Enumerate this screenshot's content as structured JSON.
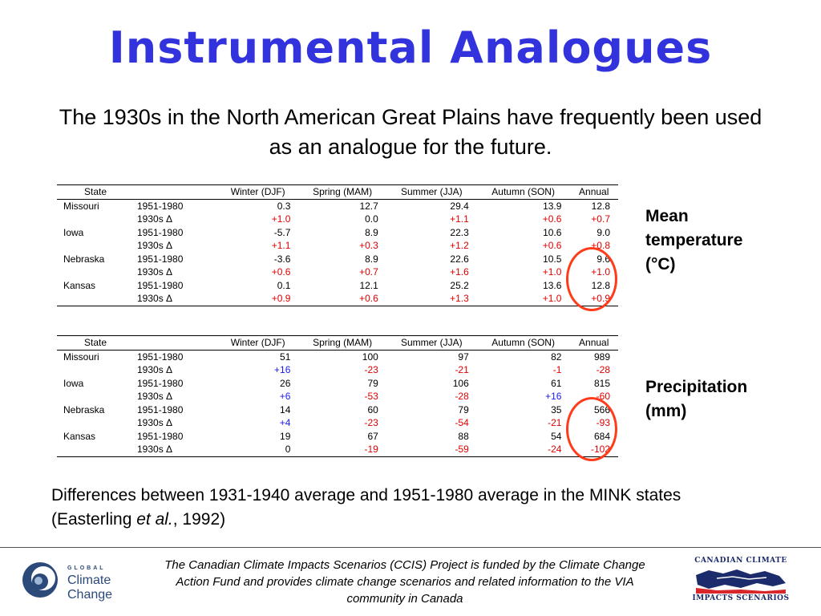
{
  "slide": {
    "title": "Instrumental Analogues",
    "subtitle": "The 1930s in the North American Great Plains have frequently been used as an analogue for the future.",
    "note_pre": "Differences between 1931-1940 average and 1951-1980 average in the MINK states (Easterling ",
    "note_italic": "et al.",
    "note_post": ", 1992)",
    "footer": "The Canadian Climate Impacts Scenarios (CCIS) Project is funded by the Climate Change Action Fund and provides climate change scenarios and related information to the VIA community in Canada"
  },
  "headers": [
    "State",
    "",
    "Winter (DJF)",
    "Spring (MAM)",
    "Summer (JJA)",
    "Autumn (SON)",
    "Annual"
  ],
  "temperature": {
    "label_lines": [
      "Mean",
      "temperature",
      "(°C)"
    ],
    "rows": [
      [
        "Missouri",
        "1951-1980",
        "0.3",
        "12.7",
        "29.4",
        "13.9",
        "12.8"
      ],
      [
        "",
        "1930s Δ",
        "+1.0",
        "0.0",
        "+1.1",
        "+0.6",
        "+0.7"
      ],
      [
        "Iowa",
        "1951-1980",
        "-5.7",
        "8.9",
        "22.3",
        "10.6",
        "9.0"
      ],
      [
        "",
        "1930s Δ",
        "+1.1",
        "+0.3",
        "+1.2",
        "+0.6",
        "+0.8"
      ],
      [
        "Nebraska",
        "1951-1980",
        "-3.6",
        "8.9",
        "22.6",
        "10.5",
        "9.6"
      ],
      [
        "",
        "1930s Δ",
        "+0.6",
        "+0.7",
        "+1.6",
        "+1.0",
        "+1.0"
      ],
      [
        "Kansas",
        "1951-1980",
        "0.1",
        "12.1",
        "25.2",
        "13.6",
        "12.8"
      ],
      [
        "",
        "1930s Δ",
        "+0.9",
        "+0.6",
        "+1.3",
        "+1.0",
        "+0.9"
      ]
    ]
  },
  "precipitation": {
    "label_lines": [
      "Precipitation",
      "(mm)"
    ],
    "rows": [
      [
        "Missouri",
        "1951-1980",
        "51",
        "100",
        "97",
        "82",
        "989"
      ],
      [
        "",
        "1930s Δ",
        "+16",
        "-23",
        "-21",
        "-1",
        "-28"
      ],
      [
        "Iowa",
        "1951-1980",
        "26",
        "79",
        "106",
        "61",
        "815"
      ],
      [
        "",
        "1930s Δ",
        "+6",
        "-53",
        "-28",
        "+16",
        "-60"
      ],
      [
        "Nebraska",
        "1951-1980",
        "14",
        "60",
        "79",
        "35",
        "566"
      ],
      [
        "",
        "1930s Δ",
        "+4",
        "-23",
        "-54",
        "-21",
        "-93"
      ],
      [
        "Kansas",
        "1951-1980",
        "19",
        "67",
        "88",
        "54",
        "684"
      ],
      [
        "",
        "1930s Δ",
        "0",
        "-19",
        "-59",
        "-24",
        "-102"
      ]
    ]
  },
  "logos": {
    "left_small": "GLOBAL",
    "left_big": "Climate Change",
    "right_top": "CANADIAN CLIMATE",
    "right_bottom": "IMPACTS SCENARIOS"
  },
  "colors": {
    "title": "#3333dd",
    "increase_temp": "#e00000",
    "increase_precip": "#1a1aee",
    "decrease_precip": "#e00000",
    "highlight_ring": "#ff3b1a"
  }
}
